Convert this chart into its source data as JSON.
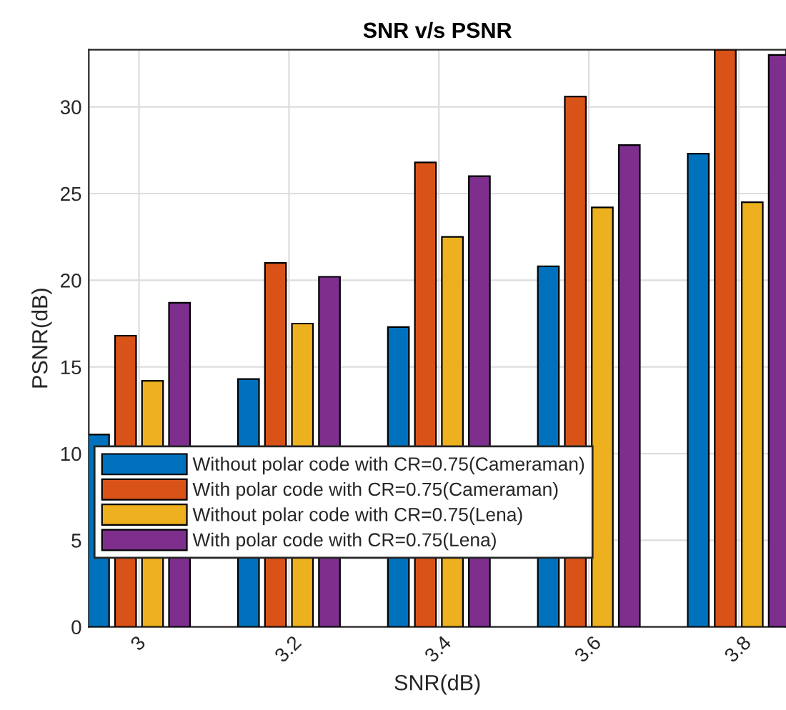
{
  "chart_data": {
    "type": "bar",
    "title": "SNR v/s PSNR",
    "xlabel": "SNR(dB)",
    "ylabel": "PSNR(dB)",
    "x": [
      3,
      3.2,
      3.4,
      3.6,
      3.8
    ],
    "series": [
      {
        "name": "Without polar code with CR=0.75(Cameraman)",
        "color": "#0072bd",
        "values": [
          11.1,
          14.3,
          17.3,
          20.8,
          27.3
        ]
      },
      {
        "name": "With polar code with CR=0.75(Cameraman)",
        "color": "#d95319",
        "values": [
          16.8,
          21.0,
          26.8,
          30.6,
          33.3
        ]
      },
      {
        "name": "Without polar code with CR=0.75(Lena)",
        "color": "#edb120",
        "values": [
          14.2,
          17.5,
          22.5,
          24.2,
          24.5
        ]
      },
      {
        "name": "With polar code with CR=0.75(Lena)",
        "color": "#7e2f8e",
        "values": [
          18.7,
          20.2,
          26.0,
          27.8,
          33.0
        ]
      }
    ],
    "xlim": [
      2.933,
      3.863
    ],
    "xticks": [
      3,
      3.2,
      3.4,
      3.6,
      3.8
    ],
    "ylim": [
      0,
      33.3
    ],
    "yticks": [
      0,
      5,
      10,
      15,
      20,
      25,
      30
    ],
    "grid": true,
    "legend": "bottom left"
  }
}
